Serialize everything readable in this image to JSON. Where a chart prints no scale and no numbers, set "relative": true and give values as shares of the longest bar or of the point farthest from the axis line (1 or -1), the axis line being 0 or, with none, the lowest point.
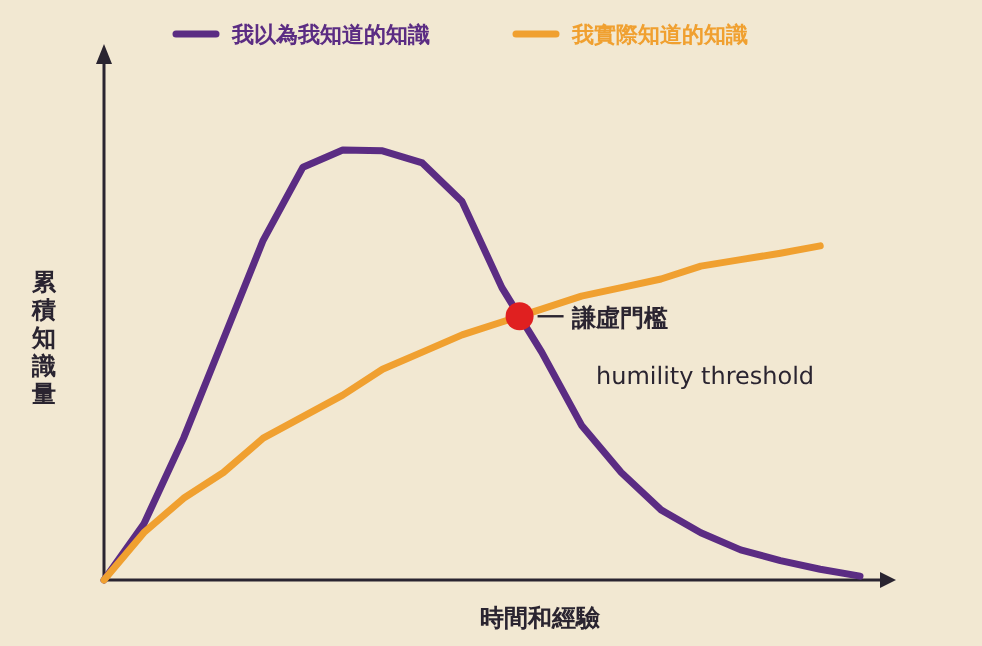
{
  "chart_data": {
    "type": "line",
    "relative": true,
    "xlabel": "時間和經驗",
    "ylabel": "累積知識量",
    "legend": "top",
    "grid": false,
    "marker": "none",
    "categories": [
      null,
      null,
      null,
      null,
      null,
      null,
      null,
      null,
      null,
      null,
      null,
      null,
      null,
      null,
      null,
      null,
      null,
      null,
      null,
      null
    ],
    "series": [
      {
        "name": "我以為我知道的知識",
        "color": "#5b2c83",
        "values": [
          0,
          0.13,
          0.33,
          0.56,
          0.79,
          0.96,
          1.0,
          0.998,
          0.97,
          0.88,
          0.68,
          0.53,
          0.36,
          0.25,
          0.163,
          0.11,
          0.07,
          0.045,
          0.025,
          0.009
        ]
      },
      {
        "name": "我實際知道的知識",
        "color": "#f0a030",
        "values": [
          0,
          0.11,
          0.19,
          0.25,
          0.33,
          0.38,
          0.43,
          0.49,
          0.53,
          0.57,
          0.6,
          0.63,
          0.66,
          0.68,
          0.7,
          0.73,
          0.745,
          0.76,
          0.777,
          null
        ]
      }
    ],
    "annotations": [
      "謙虛門檻",
      "humility threshold"
    ]
  }
}
